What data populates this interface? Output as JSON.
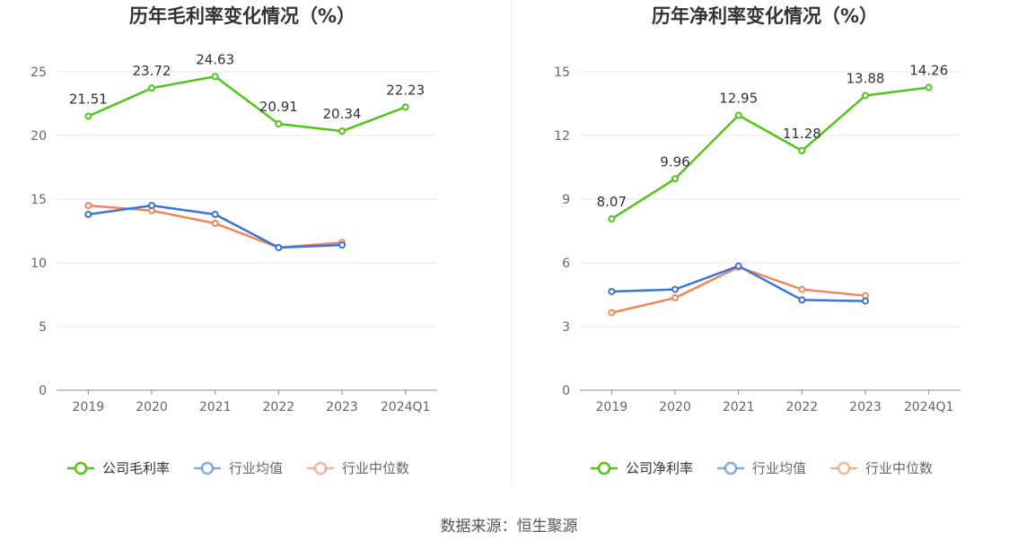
{
  "source": "数据来源：恒生聚源",
  "chart_data": [
    {
      "type": "line",
      "title": "历年毛利率变化情况（%）",
      "categories": [
        "2019",
        "2020",
        "2021",
        "2022",
        "2023",
        "2024Q1"
      ],
      "ylim": [
        0,
        25
      ],
      "yticks": [
        0,
        5,
        10,
        15,
        20,
        25
      ],
      "grid": true,
      "legend_position": "bottom",
      "series": [
        {
          "name": "公司毛利率",
          "color": "#52c41a",
          "values": [
            21.51,
            23.72,
            24.63,
            20.91,
            20.34,
            22.23
          ],
          "labels": [
            "21.51",
            "23.72",
            "24.63",
            "20.91",
            "20.34",
            "22.23"
          ]
        },
        {
          "name": "行业均值",
          "color": "#3a73d9",
          "values": [
            13.8,
            14.5,
            13.8,
            11.2,
            11.4,
            null
          ]
        },
        {
          "name": "行业中位数",
          "color": "#f0865a",
          "values": [
            14.5,
            14.1,
            13.1,
            11.2,
            11.6,
            null
          ]
        }
      ]
    },
    {
      "type": "line",
      "title": "历年净利率变化情况（%）",
      "categories": [
        "2019",
        "2020",
        "2021",
        "2022",
        "2023",
        "2024Q1"
      ],
      "ylim": [
        0,
        15
      ],
      "yticks": [
        0,
        3,
        6,
        9,
        12,
        15
      ],
      "grid": true,
      "legend_position": "bottom",
      "series": [
        {
          "name": "公司净利率",
          "color": "#52c41a",
          "values": [
            8.07,
            9.96,
            12.95,
            11.28,
            13.88,
            14.26
          ],
          "labels": [
            "8.07",
            "9.96",
            "12.95",
            "11.28",
            "13.88",
            "14.26"
          ]
        },
        {
          "name": "行业均值",
          "color": "#3a73d9",
          "values": [
            4.65,
            4.75,
            5.85,
            4.25,
            4.2,
            null
          ]
        },
        {
          "name": "行业中位数",
          "color": "#f0865a",
          "values": [
            3.65,
            4.35,
            5.8,
            4.75,
            4.45,
            null
          ]
        }
      ]
    }
  ]
}
